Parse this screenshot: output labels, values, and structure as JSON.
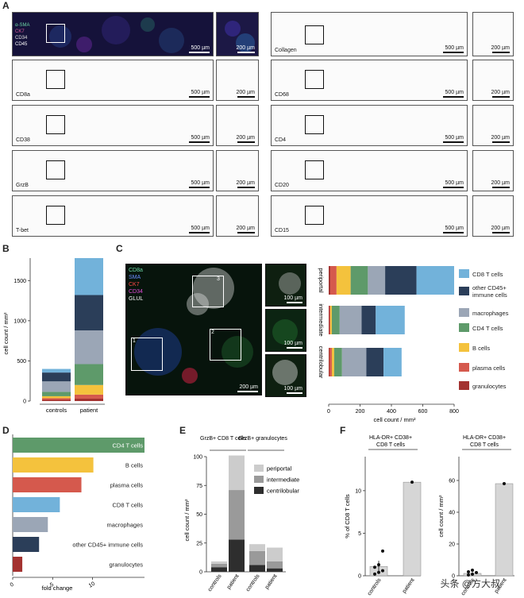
{
  "panels": {
    "A": "A",
    "B": "B",
    "C": "C",
    "D": "D",
    "E": "E",
    "F": "F"
  },
  "panelA": {
    "overview_legend": [
      "α-SMA",
      "CK7",
      "CD34",
      "CD45"
    ],
    "scale_large": "500 µm",
    "scale_small": "200 µm",
    "left_markers": [
      "CD8a",
      "CD38",
      "GrzB",
      "T-bet"
    ],
    "right_markers": [
      "Collagen",
      "CD68",
      "CD4",
      "CD20",
      "CD15"
    ]
  },
  "panelB": {
    "ylabel": "cell count / mm²",
    "yticks": [
      "0",
      "500",
      "1000",
      "1500"
    ],
    "categories": [
      "controls",
      "patient"
    ]
  },
  "panelC": {
    "image_legend": [
      "CD8a",
      "SMA",
      "CK7",
      "CD34",
      "GLUL"
    ],
    "roi_numbers": [
      "1",
      "2",
      "3"
    ],
    "scale_main": "200 µm",
    "scale_inset": "100 µm",
    "row_labels": [
      "periportal",
      "intermediate",
      "centrilobular"
    ],
    "xlabel": "cell count / mm²",
    "xticks": [
      "0",
      "200",
      "400",
      "600",
      "800"
    ],
    "legend": [
      "CD8 T cells",
      "other CD45+ immune cells",
      "macrophages",
      "CD4 T cells",
      "B cells",
      "plasma cells",
      "granulocytes"
    ]
  },
  "panelD": {
    "xlabel": "fold change",
    "xticks": [
      "0",
      "5",
      "10"
    ]
  },
  "panelE": {
    "group_titles": [
      "GrzB+ CD8 T cells",
      "GrzB+ granulocytes"
    ],
    "ylabel": "cell count / mm²",
    "yticks": [
      "0",
      "25",
      "50",
      "75",
      "100"
    ],
    "xticks": [
      "controls",
      "patient",
      "controls",
      "patient"
    ],
    "legend": [
      "periportal",
      "intermediate",
      "centrilobular"
    ]
  },
  "panelF": {
    "titles": [
      "HLA-DR+ CD38+ CD8 T cells",
      "HLA-DR+ CD38+ CD8 T cells"
    ],
    "ylabels": [
      "% of CD8 T cells",
      "cell count / mm²"
    ],
    "yticks_left": [
      "0",
      "5",
      "10"
    ],
    "yticks_right": [
      "0",
      "20",
      "40",
      "60"
    ],
    "xticks": [
      "controls",
      "patient"
    ]
  },
  "watermark": "头条 @方大叔",
  "colors": {
    "cd8": "#72b2da",
    "other_cd45": "#2b3e59",
    "macrophages": "#9ba6b6",
    "cd4": "#5e9a6a",
    "bcells": "#f4c23d",
    "plasma": "#d5594d",
    "granulocytes": "#a33230",
    "periportal": "#cccccc",
    "intermediate": "#9a9a9a",
    "centrilobular": "#2e2e2e"
  },
  "chart_data": [
    {
      "type": "bar",
      "panel": "B",
      "stacked": true,
      "categories": [
        "controls",
        "patient"
      ],
      "series": [
        {
          "name": "granulocytes",
          "values": [
            15,
            30
          ]
        },
        {
          "name": "plasma cells",
          "values": [
            20,
            50
          ]
        },
        {
          "name": "B cells",
          "values": [
            25,
            120
          ]
        },
        {
          "name": "CD4 T cells",
          "values": [
            55,
            260
          ]
        },
        {
          "name": "macrophages",
          "values": [
            130,
            420
          ]
        },
        {
          "name": "other CD45+ immune cells",
          "values": [
            110,
            440
          ]
        },
        {
          "name": "CD8 T cells",
          "values": [
            45,
            460
          ]
        }
      ],
      "ylabel": "cell count / mm²",
      "ylim": [
        0,
        1780
      ]
    },
    {
      "type": "bar",
      "panel": "C",
      "stacked": true,
      "orientation": "horizontal",
      "categories": [
        "periportal",
        "intermediate",
        "centrilobular"
      ],
      "series": [
        {
          "name": "granulocytes",
          "values": [
            10,
            5,
            5
          ]
        },
        {
          "name": "plasma cells",
          "values": [
            40,
            5,
            15
          ]
        },
        {
          "name": "B cells",
          "values": [
            90,
            10,
            15
          ]
        },
        {
          "name": "CD4 T cells",
          "values": [
            110,
            50,
            50
          ]
        },
        {
          "name": "macrophages",
          "values": [
            110,
            140,
            155
          ]
        },
        {
          "name": "other CD45+ immune cells",
          "values": [
            200,
            90,
            110
          ]
        },
        {
          "name": "CD8 T cells",
          "values": [
            240,
            185,
            115
          ]
        }
      ],
      "xlabel": "cell count / mm²",
      "xlim": [
        0,
        800
      ]
    },
    {
      "type": "bar",
      "panel": "D",
      "orientation": "horizontal",
      "categories": [
        "CD4 T cells",
        "B cells",
        "plasma cells",
        "CD8 T cells",
        "macrophages",
        "other CD45+ immune cells",
        "granulocytes"
      ],
      "values": [
        16.5,
        10.1,
        8.6,
        5.9,
        4.4,
        3.3,
        1.2
      ],
      "xlabel": "fold change",
      "xlim": [
        0,
        16.5
      ]
    },
    {
      "type": "bar",
      "panel": "E",
      "stacked": true,
      "categories": [
        "controls",
        "patient",
        "controls",
        "patient"
      ],
      "series": [
        {
          "name": "centrilobular",
          "values": [
            4,
            28,
            6,
            3
          ]
        },
        {
          "name": "intermediate",
          "values": [
            3,
            43,
            12,
            6
          ]
        },
        {
          "name": "periportal",
          "values": [
            2,
            30,
            6,
            12
          ]
        }
      ],
      "ylabel": "cell count / mm²",
      "ylim": [
        0,
        100
      ]
    },
    {
      "type": "bar",
      "panel": "F-left",
      "categories": [
        "controls",
        "patient"
      ],
      "values": [
        1.1,
        11.0
      ],
      "points_controls": [
        0.2,
        0.4,
        0.6,
        1.0,
        1.3,
        2.9
      ],
      "ylabel": "% of CD8 T cells",
      "ylim": [
        0,
        14
      ]
    },
    {
      "type": "bar",
      "panel": "F-right",
      "categories": [
        "controls",
        "patient"
      ],
      "values": [
        1.5,
        58
      ],
      "points_controls": [
        0.5,
        1.0,
        2.0,
        2.5,
        3.5
      ],
      "ylabel": "cell count / mm²",
      "ylim": [
        0,
        75
      ]
    }
  ]
}
